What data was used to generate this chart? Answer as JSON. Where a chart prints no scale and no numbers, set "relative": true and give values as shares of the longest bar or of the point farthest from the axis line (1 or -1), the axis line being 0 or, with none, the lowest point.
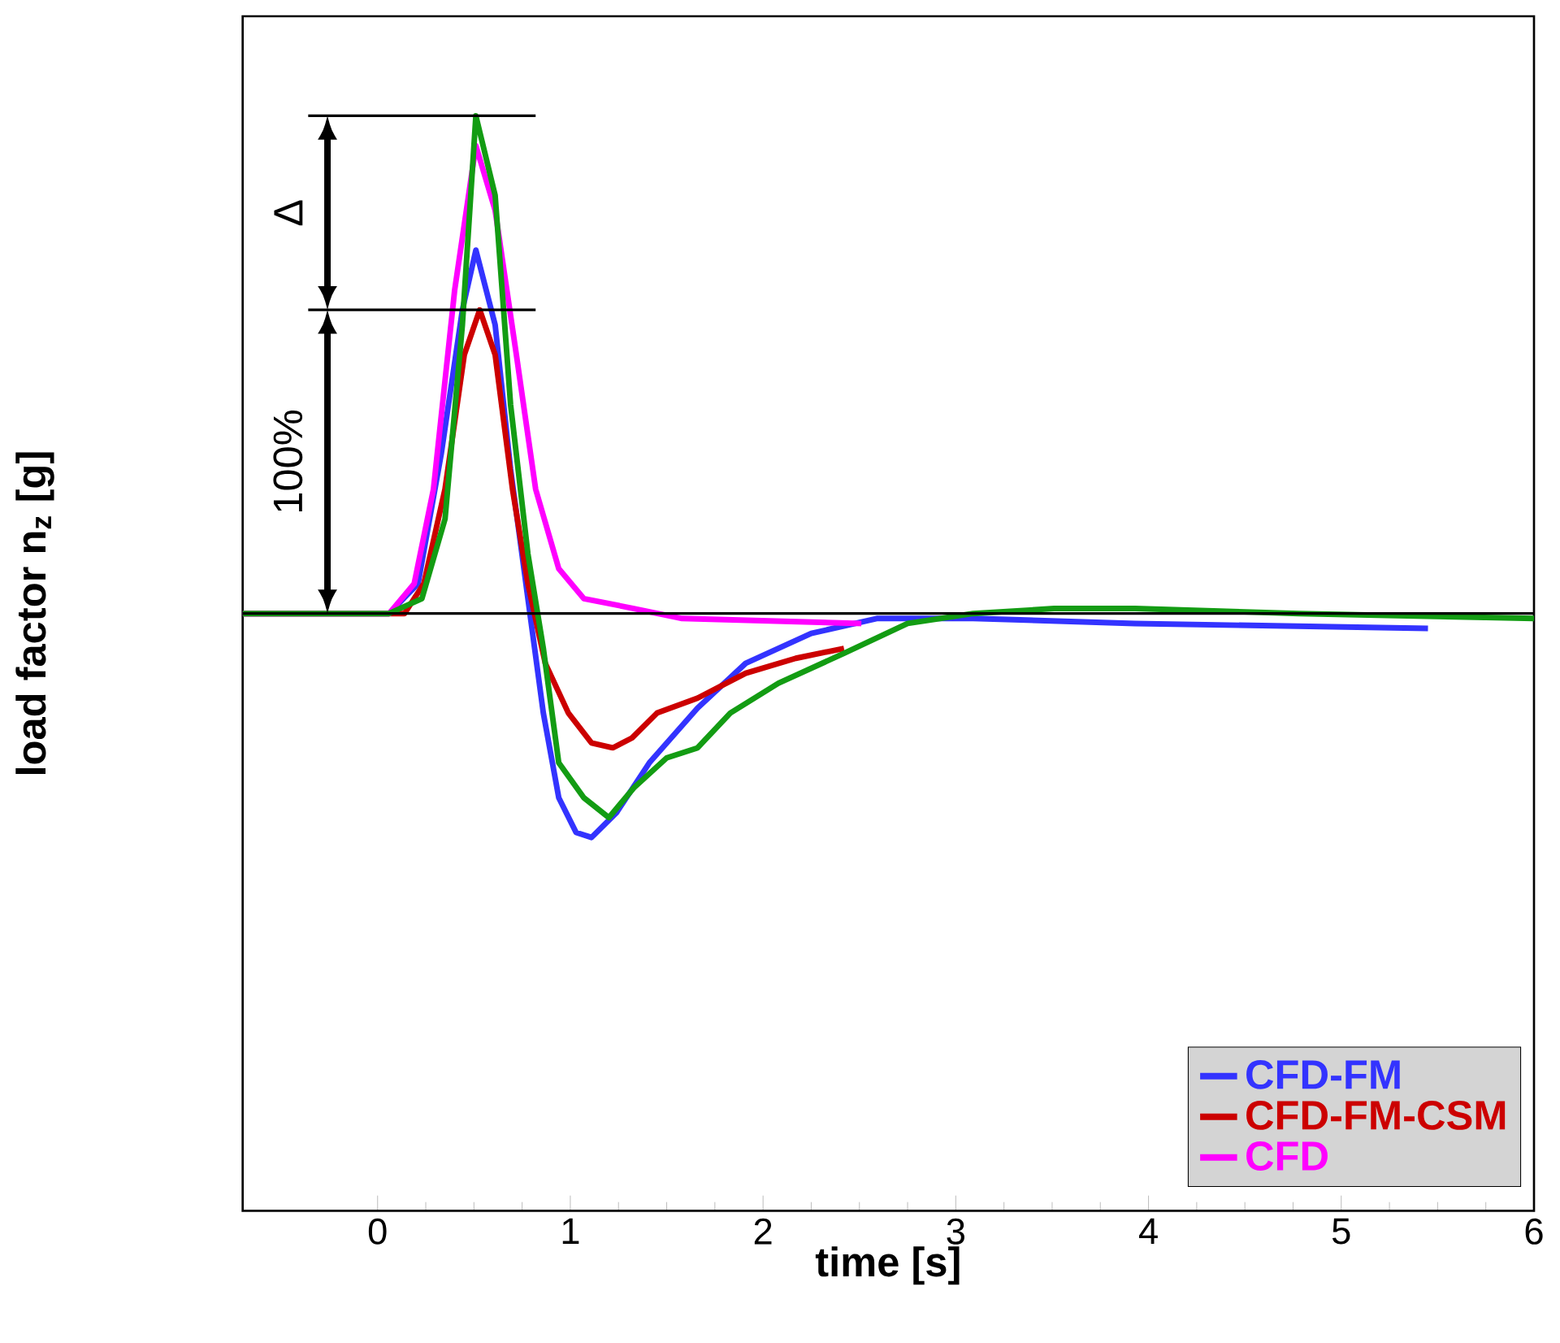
{
  "chart_data": {
    "type": "line",
    "relative": true,
    "xlabel": "time [s]",
    "ylabel": "**load factor n$_{z}$ [g]**",
    "xlim": [
      -0.7,
      6
    ],
    "xticks": [
      0,
      1,
      2,
      3,
      4,
      5,
      6
    ],
    "legend": "bottom right",
    "ref_lines": [
      {
        "axis": "y",
        "value": 0,
        "color": "#000000"
      }
    ],
    "annotations": [
      "100%",
      "Δ"
    ],
    "series": [
      {
        "name": "CFD-FM",
        "color": "#3333ff",
        "x": [
          -0.7,
          0.06,
          0.21,
          0.33,
          0.44,
          0.51,
          0.61,
          0.69,
          0.78,
          0.86,
          0.94,
          1.03,
          1.11,
          1.24,
          1.41,
          1.66,
          1.91,
          2.25,
          2.59,
          3.09,
          3.93,
          5.45
        ],
        "values": [
          0,
          0,
          0.06,
          0.32,
          0.61,
          0.73,
          0.58,
          0.29,
          0.03,
          -0.2,
          -0.37,
          -0.44,
          -0.45,
          -0.4,
          -0.3,
          -0.19,
          -0.1,
          -0.04,
          -0.01,
          -0.01,
          -0.02,
          -0.03
        ]
      },
      {
        "name": "CFD-FM-CSM",
        "color": "#cc0000",
        "x": [
          -0.7,
          -0.11,
          0.14,
          0.24,
          0.35,
          0.45,
          0.53,
          0.61,
          0.7,
          0.78,
          0.87,
          0.99,
          1.11,
          1.22,
          1.32,
          1.45,
          1.66,
          1.91,
          2.17,
          2.42
        ],
        "values": [
          0,
          0,
          0,
          0.06,
          0.25,
          0.52,
          0.61,
          0.52,
          0.25,
          0.06,
          -0.1,
          -0.2,
          -0.26,
          -0.27,
          -0.25,
          -0.2,
          -0.17,
          -0.12,
          -0.09,
          -0.07
        ]
      },
      {
        "name": "CFD",
        "color": "#ff00ff",
        "x": [
          -0.7,
          0.06,
          0.19,
          0.29,
          0.4,
          0.51,
          0.61,
          0.72,
          0.82,
          0.94,
          1.07,
          1.33,
          1.58,
          2.51
        ],
        "values": [
          0,
          0,
          0.06,
          0.25,
          0.65,
          0.94,
          0.81,
          0.52,
          0.25,
          0.09,
          0.03,
          0.01,
          -0.01,
          -0.02
        ]
      },
      {
        "color": "#139c13",
        "x": [
          -0.7,
          0.06,
          0.23,
          0.35,
          0.44,
          0.51,
          0.61,
          0.69,
          0.78,
          0.86,
          0.94,
          1.07,
          1.2,
          1.33,
          1.5,
          1.66,
          1.83,
          2.08,
          2.42,
          2.75,
          3.09,
          3.51,
          3.93,
          4.78,
          6.0
        ],
        "values": [
          0,
          0,
          0.03,
          0.19,
          0.58,
          1.0,
          0.84,
          0.42,
          0.12,
          -0.07,
          -0.3,
          -0.37,
          -0.41,
          -0.35,
          -0.29,
          -0.27,
          -0.2,
          -0.14,
          -0.08,
          -0.02,
          0.0,
          0.01,
          0.01,
          0.0,
          -0.01
        ]
      }
    ]
  }
}
